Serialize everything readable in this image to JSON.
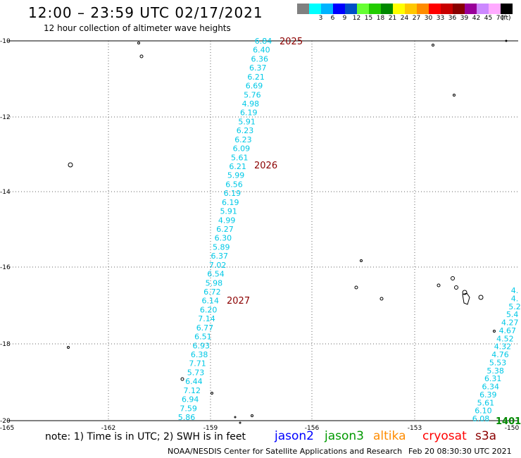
{
  "header": {
    "title": "12:00 – 23:59 UTC 02/17/2021",
    "subtitle": "12 hour collection of altimeter wave heights"
  },
  "legend": {
    "swatches": [
      {
        "color": "#808080",
        "label": ""
      },
      {
        "color": "#00ffff",
        "label": "3"
      },
      {
        "color": "#00b4ff",
        "label": "6"
      },
      {
        "color": "#0000ff",
        "label": "9"
      },
      {
        "color": "#0050c8",
        "label": "12"
      },
      {
        "color": "#66ff33",
        "label": "15"
      },
      {
        "color": "#22cc00",
        "label": "18"
      },
      {
        "color": "#008800",
        "label": "21"
      },
      {
        "color": "#ffff00",
        "label": "24"
      },
      {
        "color": "#ffc800",
        "label": "27"
      },
      {
        "color": "#ff8c00",
        "label": "30"
      },
      {
        "color": "#ff0000",
        "label": "33"
      },
      {
        "color": "#c80000",
        "label": "36"
      },
      {
        "color": "#880000",
        "label": "39"
      },
      {
        "color": "#990099",
        "label": "42"
      },
      {
        "color": "#cc88ff",
        "label": "45"
      },
      {
        "color": "#ffaaff",
        "label": "70"
      },
      {
        "color": "#000000",
        "label": ""
      }
    ],
    "unit": "(ft)"
  },
  "axes": {
    "lon_labels": [
      "-165",
      "-162",
      "-159",
      "-156",
      "-153",
      "-150"
    ],
    "lat_labels": [
      "-10",
      "-12",
      "-14",
      "-16",
      "-18",
      "-20"
    ]
  },
  "tracks": {
    "track1": {
      "color": "#00c8e6",
      "values": [
        "6.84",
        "6.40",
        "6.36",
        "6.37",
        "6.21",
        "6.69",
        "5.76",
        "4.98",
        "6.19",
        "5.91",
        "6.23",
        "6.23",
        "6.09",
        "5.61",
        "6.21",
        "5.99",
        "6.56",
        "6.19",
        "6.19",
        "5.91",
        "4.99",
        "6.27",
        "6.30",
        "5.89",
        "6.37",
        "7.02",
        "6.54",
        "5.98",
        "6.72",
        "6.14",
        "6.20",
        "7.14",
        "6.77",
        "6.51",
        "6.93",
        "6.38",
        "7.71",
        "5.73",
        "6.44",
        "7.12",
        "6.94",
        "7.59",
        "5.86"
      ]
    },
    "track2": {
      "color": "#00c8e6",
      "values": [
        "4.",
        "4.",
        "5.2",
        "5.4",
        "4.27",
        "4.67",
        "4.52",
        "4.32",
        "4.76",
        "5.53",
        "5.38",
        "6.31",
        "6.34",
        "6.39",
        "5.61",
        "6.10",
        "6.08"
      ]
    },
    "time_labels": [
      {
        "text": "2025",
        "color": "#8b0000"
      },
      {
        "text": "2026",
        "color": "#8b0000"
      },
      {
        "text": "2027",
        "color": "#8b0000"
      },
      {
        "text": "1401",
        "color": "#008800"
      }
    ]
  },
  "footer": {
    "note": "note:  1) Time is in UTC;  2) SWH is in feet",
    "satellites": [
      {
        "name": "jason2",
        "color": "#0000ff"
      },
      {
        "name": "jason3",
        "color": "#009900"
      },
      {
        "name": "altika",
        "color": "#ff8c00"
      },
      {
        "name": "cryosat",
        "color": "#ff0000"
      },
      {
        "name": "s3a",
        "color": "#8b0000"
      }
    ],
    "credit": "NOAA/NESDIS Center for Satellite Applications and Research",
    "generated": "Feb 20 08:30:30 UTC 2021"
  }
}
